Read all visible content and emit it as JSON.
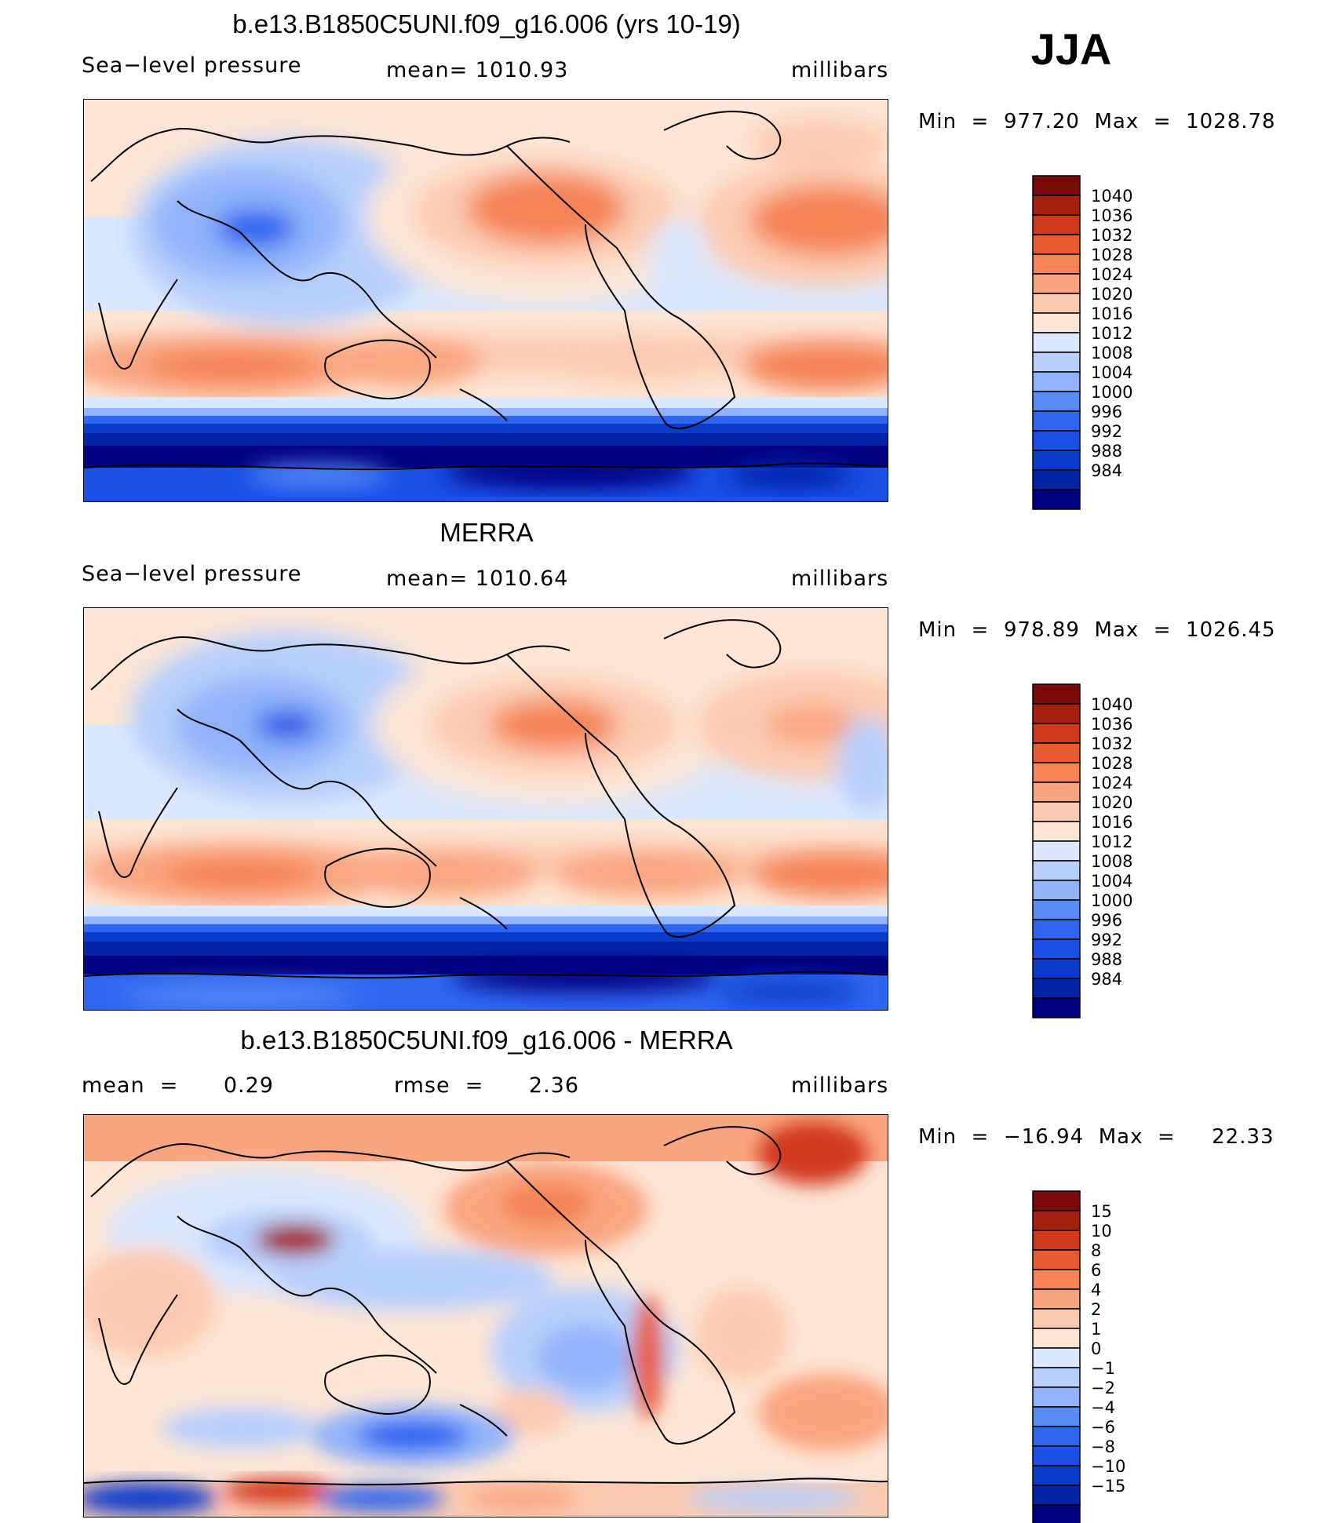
{
  "season": "JJA",
  "chart_data": [
    {
      "type": "heatmap",
      "title": "b.e13.B1850C5UNI.f09_g16.006 (yrs 10-19)",
      "left_label": "Sea−level pressure",
      "center_label": "mean=  1010.93",
      "units": "millibars",
      "minmax": "Min  =  977.20  Max  =  1028.78",
      "colorbar": {
        "colors": [
          "#000080",
          "#0424a8",
          "#0a3ccc",
          "#1a50e6",
          "#2f66f0",
          "#5a8cf5",
          "#8fb2fa",
          "#b8cffc",
          "#dbe8fd",
          "#fde6d6",
          "#fccab0",
          "#faa580",
          "#f58457",
          "#e85a30",
          "#d0381a",
          "#a4200d",
          "#7a0806"
        ],
        "labels": [
          "984",
          "988",
          "992",
          "996",
          "1000",
          "1004",
          "1008",
          "1012",
          "1016",
          "1020",
          "1024",
          "1028",
          "1032",
          "1036",
          "1040"
        ]
      }
    },
    {
      "type": "heatmap",
      "title": "MERRA",
      "left_label": "Sea−level pressure",
      "center_label": "mean=  1010.64",
      "units": "millibars",
      "minmax": "Min  =  978.89  Max  =  1026.45",
      "colorbar": {
        "colors": [
          "#000080",
          "#0424a8",
          "#0a3ccc",
          "#1a50e6",
          "#2f66f0",
          "#5a8cf5",
          "#8fb2fa",
          "#b8cffc",
          "#dbe8fd",
          "#fde6d6",
          "#fccab0",
          "#faa580",
          "#f58457",
          "#e85a30",
          "#d0381a",
          "#a4200d",
          "#7a0806"
        ],
        "labels": [
          "984",
          "988",
          "992",
          "996",
          "1000",
          "1004",
          "1008",
          "1012",
          "1016",
          "1020",
          "1024",
          "1028",
          "1032",
          "1036",
          "1040"
        ]
      }
    },
    {
      "type": "heatmap",
      "title": "b.e13.B1850C5UNI.f09_g16.006 - MERRA",
      "left_label": "mean  =      0.29",
      "center_label": "rmse  =      2.36",
      "units": "millibars",
      "minmax": "Min  =  −16.94  Max  =     22.33",
      "colorbar": {
        "colors": [
          "#000080",
          "#0424a8",
          "#0a3ccc",
          "#1a50e6",
          "#2f66f0",
          "#5a8cf5",
          "#8fb2fa",
          "#b8cffc",
          "#dbe8fd",
          "#fde6d6",
          "#fccab0",
          "#faa580",
          "#f58457",
          "#e85a30",
          "#d0381a",
          "#a4200d",
          "#7a0806"
        ],
        "labels": [
          "−15",
          "−10",
          "−8",
          "−6",
          "−4",
          "−2",
          "−1",
          "0",
          "1",
          "2",
          "4",
          "6",
          "8",
          "10",
          "15"
        ]
      }
    }
  ]
}
